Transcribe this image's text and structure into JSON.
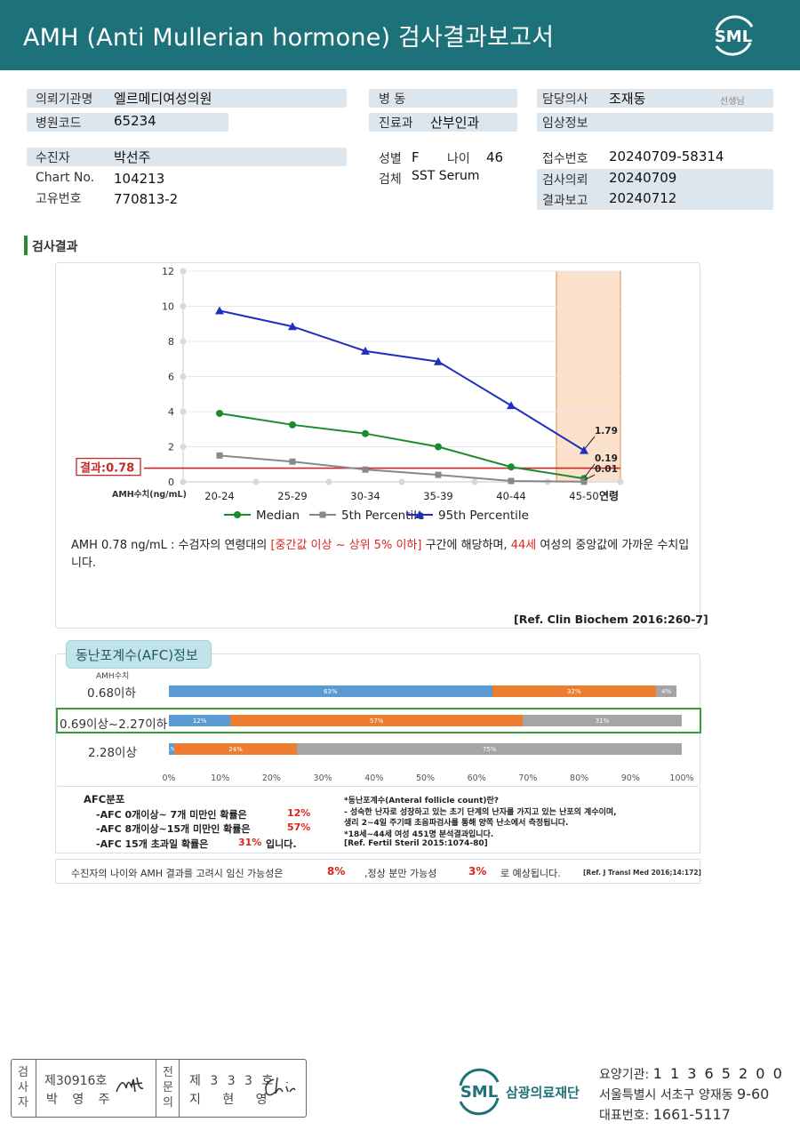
{
  "header": {
    "title": "AMH (Anti Mullerian hormone) 검사결과보고서",
    "logo_text": "SML"
  },
  "info": {
    "institution_label": "의뢰기관명",
    "institution_value": "엘르메디여성의원",
    "hospital_code_label": "병원코드",
    "hospital_code_value": "65234",
    "ward_label": "병 동",
    "ward_value": "",
    "department_label": "진료과",
    "department_value": "산부인과",
    "doctor_label": "담당의사",
    "doctor_value": "조재동",
    "doctor_suffix": "선생님",
    "clinical_label": "임상정보",
    "clinical_value": "",
    "patient_label": "수진자",
    "patient_value": "박선주",
    "chart_label": "Chart No.",
    "chart_value": "104213",
    "id_label": "고유번호",
    "id_value": "770813-2",
    "sex_label": "성별",
    "sex_value": "F",
    "age_label": "나이",
    "age_value": "46",
    "specimen_label": "검체",
    "specimen_value": "SST Serum",
    "receipt_label": "접수번호",
    "receipt_value": "20240709-58314",
    "request_label": "검사의뢰",
    "request_value": "20240709",
    "report_label": "결과보고",
    "report_value": "20240712"
  },
  "section_title": "검사결과",
  "chart_data": {
    "type": "line",
    "categories": [
      "20-24",
      "25-29",
      "30-34",
      "35-39",
      "40-44",
      "45-50"
    ],
    "series": [
      {
        "name": "Median",
        "color": "#1a8c2e",
        "marker": "circle",
        "values": [
          3.9,
          3.25,
          2.75,
          2.0,
          0.85,
          0.19
        ]
      },
      {
        "name": "5th Percentile",
        "color": "#888888",
        "marker": "square",
        "values": [
          1.5,
          1.15,
          0.7,
          0.4,
          0.05,
          0.01
        ]
      },
      {
        "name": "95th Percentile",
        "color": "#1f2fbf",
        "marker": "triangle",
        "values": [
          9.75,
          8.85,
          7.45,
          6.85,
          4.35,
          1.79
        ]
      }
    ],
    "point_labels": [
      "1.79",
      "0.19",
      "0.01"
    ],
    "ylim": [
      0,
      12
    ],
    "yticks": [
      "0",
      "2",
      "4",
      "6",
      "8",
      "10",
      "12"
    ],
    "xlabel": "연령",
    "ylabel": "AMH수치(ng/mL)",
    "result_value": 0.78,
    "result_label": "결과:0.78",
    "highlight_category": "45-50",
    "legend_position": "bottom"
  },
  "summary": {
    "part1": "AMH  0.78 ng/mL : 수검자의 연령대의 ",
    "part2_red": "[중간값 이상 ~ 상위 5% 이하]",
    "part3": " 구간에 해당하며, ",
    "part4_red": "44세",
    "part5": " 여성의 중앙값에 가까운 수치입니다.",
    "ref": "[Ref. Clin Biochem 2016:260-7]"
  },
  "afc": {
    "tab_title": "동난포계수(AFC)정보",
    "amh_label": "AMH수치",
    "colors": [
      "#5b9bd5",
      "#ed7d31",
      "#a5a5a5"
    ],
    "rows": [
      {
        "label": "0.68이하",
        "values": [
          63,
          32,
          4
        ],
        "labels": [
          "63%",
          "32%",
          "4%"
        ]
      },
      {
        "label": "0.69이상~2.27이하",
        "values": [
          12,
          57,
          31
        ],
        "labels": [
          "12%",
          "57%",
          "31%"
        ]
      },
      {
        "label": "2.28이상",
        "values": [
          1,
          24,
          75
        ],
        "labels": [
          "1%",
          "24%",
          "75%"
        ]
      }
    ],
    "axis": [
      "0%",
      "10%",
      "20%",
      "30%",
      "40%",
      "50%",
      "60%",
      "70%",
      "80%",
      "90%",
      "100%"
    ],
    "dist_title": "AFC분포",
    "dist_lines": [
      {
        "text": "-AFC  0개이상~ 7개 미만인 확률은",
        "pct": "12%",
        "tail": ""
      },
      {
        "text": "-AFC  8개이상~15개 미만인 확률은",
        "pct": "57%",
        "tail": ""
      },
      {
        "text": "-AFC  15개 초과일 확률은",
        "pct": "31%",
        "tail": "입니다."
      }
    ],
    "def_lines": [
      "*동난포계수(Anteral  follicle  count)란?",
      "- 성숙한 난자로 성장하고 있는 초기 단계의 난자를 가지고 있는 난포의 계수이며,",
      "  생리 2~4일 주기때 초음파검사를 통해 양쪽 난소에서 측정됩니다.",
      "*18세~44세 여성 451명 분석결과입니다.",
      "[Ref. Fertil Steril 2015:1074-80]"
    ]
  },
  "pregnancy": {
    "text1": "수진자의  나이와 AMH 결과를 고려시 임신 가능성은",
    "pct1": "8%",
    "text2": ",정상 분만 가능성",
    "pct2": "3%",
    "text3": "로 예상됩니다.",
    "ref": "[Ref. J Transl Med 2016;14:172]"
  },
  "sign": {
    "col1_label": "검사자",
    "col1_line1": "제30916호",
    "col1_line2": "박 영 주",
    "col2_label": "전문의",
    "col2_line1": "제 3 3 3 호",
    "col2_line2": "지 현 영"
  },
  "footer": {
    "logo_text": "SML",
    "org_name": "삼광의료재단",
    "code_label": "요양기관:",
    "code_value": "1 1 3 6 5 2 0 0",
    "address_label": "서울특별시 서초구 양재동",
    "address_value": "9-60",
    "phone_label": "대표번호:",
    "phone_value": "1661-5117"
  }
}
